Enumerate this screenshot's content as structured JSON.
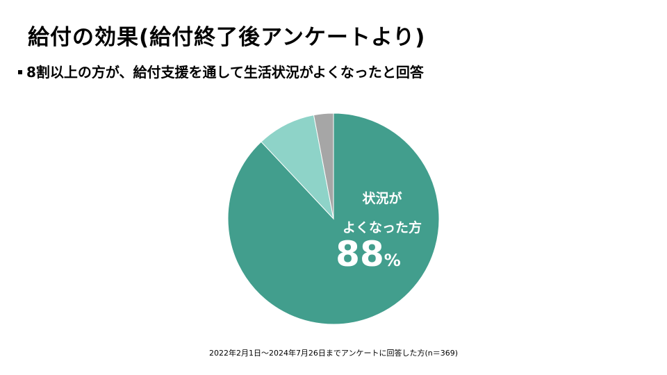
{
  "title": "給付の効果(給付終了後アンケートより)",
  "subtitle": "8割以上の方が、給付支援を通して生活状況がよくなったと回答",
  "chart_data": {
    "type": "pie",
    "slices": [
      {
        "label": "状況がよくなった方",
        "value": 88,
        "color": "#429e8d"
      },
      {
        "label": "",
        "value": 9,
        "color": "#8ed3c8"
      },
      {
        "label": "",
        "value": 3,
        "color": "#a6a6a6"
      }
    ],
    "annotation": {
      "line1": "状況が",
      "line2": "よくなった方",
      "value": "88",
      "unit": "%"
    }
  },
  "footnote": "2022年2月1日～2024年7月26日までアンケートに回答した方(n＝369)"
}
